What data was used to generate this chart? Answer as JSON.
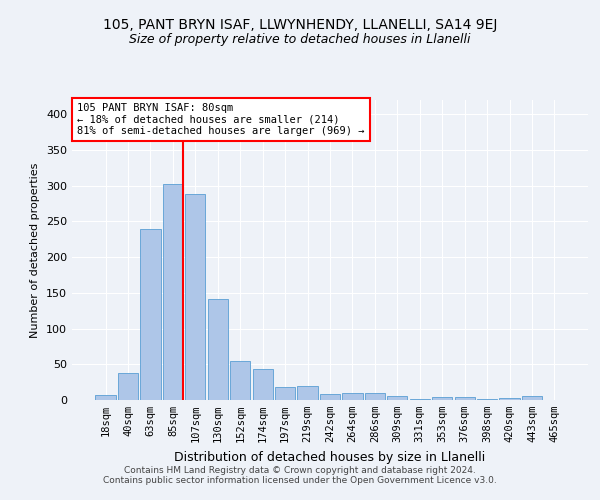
{
  "title1": "105, PANT BRYN ISAF, LLWYNHENDY, LLANELLI, SA14 9EJ",
  "title2": "Size of property relative to detached houses in Llanelli",
  "xlabel": "Distribution of detached houses by size in Llanelli",
  "ylabel": "Number of detached properties",
  "bar_labels": [
    "18sqm",
    "40sqm",
    "63sqm",
    "85sqm",
    "107sqm",
    "130sqm",
    "152sqm",
    "174sqm",
    "197sqm",
    "219sqm",
    "242sqm",
    "264sqm",
    "286sqm",
    "309sqm",
    "331sqm",
    "353sqm",
    "376sqm",
    "398sqm",
    "420sqm",
    "443sqm",
    "465sqm"
  ],
  "bar_values": [
    7,
    38,
    240,
    303,
    289,
    142,
    55,
    44,
    18,
    20,
    8,
    10,
    10,
    5,
    2,
    4,
    4,
    1,
    3,
    5,
    0
  ],
  "bar_color": "#aec6e8",
  "bar_edge_color": "#5a9fd4",
  "vline_x_index": 3,
  "annotation_line1": "105 PANT BRYN ISAF: 80sqm",
  "annotation_line2": "← 18% of detached houses are smaller (214)",
  "annotation_line3": "81% of semi-detached houses are larger (969) →",
  "annotation_box_color": "white",
  "annotation_box_edge": "red",
  "vline_color": "red",
  "ylim": [
    0,
    420
  ],
  "yticks": [
    0,
    50,
    100,
    150,
    200,
    250,
    300,
    350,
    400
  ],
  "footer": "Contains HM Land Registry data © Crown copyright and database right 2024.\nContains public sector information licensed under the Open Government Licence v3.0.",
  "bg_color": "#eef2f8",
  "plot_bg_color": "#eef2f8"
}
